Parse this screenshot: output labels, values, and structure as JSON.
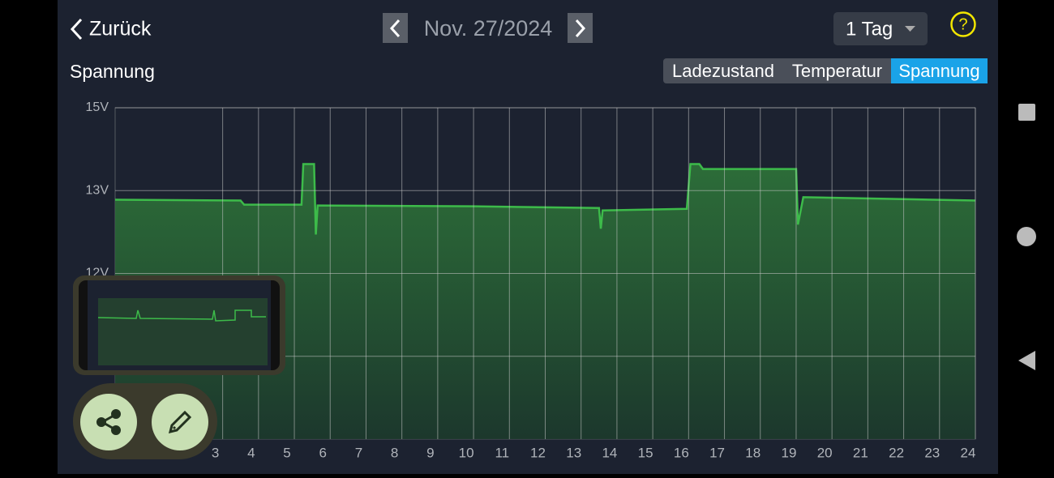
{
  "header": {
    "back": "Zurück",
    "date": "Nov. 27/2024",
    "range": "1 Tag",
    "help": "?"
  },
  "tabs": [
    "Ladezustand",
    "Temperatur",
    "Spannung"
  ],
  "active_tab": 2,
  "chart_data": {
    "type": "area",
    "title": "Spannung",
    "x": [
      0,
      3.5,
      3.6,
      5.2,
      5.25,
      5.55,
      5.6,
      5.65,
      10,
      13.5,
      13.55,
      13.6,
      15.95,
      16.05,
      16.3,
      16.4,
      19,
      19.05,
      19.2,
      24
    ],
    "series": [
      {
        "color": "#3dbb4a",
        "values": [
          12.89,
          12.88,
          12.83,
          12.83,
          13.64,
          13.64,
          12.47,
          12.82,
          12.81,
          12.79,
          12.54,
          12.76,
          12.78,
          13.64,
          13.64,
          13.52,
          13.52,
          12.59,
          12.92,
          12.88
        ]
      }
    ],
    "xlim": [
      0,
      24
    ],
    "xticks": [
      3,
      4,
      5,
      6,
      7,
      8,
      9,
      10,
      11,
      12,
      13,
      14,
      15,
      16,
      17,
      18,
      19,
      20,
      21,
      22,
      23,
      24
    ],
    "yticks": [
      {
        "value": 15,
        "label": "15V"
      },
      {
        "value": 13,
        "label": "13V"
      },
      {
        "value": 12,
        "label": "12V"
      }
    ],
    "grid": true
  }
}
